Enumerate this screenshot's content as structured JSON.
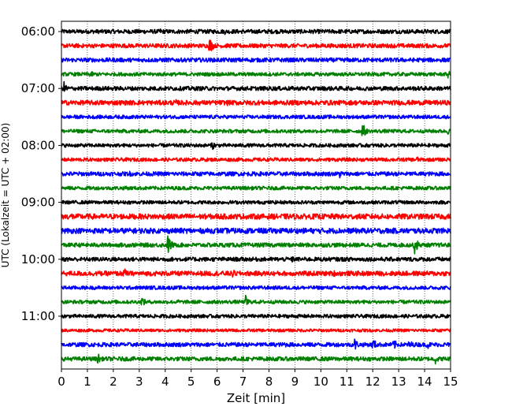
{
  "chart_data": {
    "type": "line",
    "title": "",
    "xlabel": "Zeit  [min]",
    "ylabel": "UTC (Lokalzeit = UTC + 02:00)",
    "xlim": [
      0,
      15
    ],
    "x_ticks": [
      "0",
      "1",
      "2",
      "3",
      "4",
      "5",
      "6",
      "7",
      "8",
      "9",
      "10",
      "11",
      "12",
      "13",
      "14",
      "15"
    ],
    "y_ticks": [
      "06:00",
      "07:00",
      "08:00",
      "09:00",
      "10:00",
      "11:00"
    ],
    "grid": "vertical dotted at each minute",
    "trace_interval_min": 15,
    "start_time": "06:00",
    "color_cycle": [
      "#000000",
      "#ff0000",
      "#0000ff",
      "#008000"
    ],
    "series": [
      {
        "row": 0,
        "time": "06:00",
        "color": "#000000",
        "amplitude": 0.35,
        "events": [
          {
            "t": 3.8,
            "amp": 0.6
          },
          {
            "t": 6.3,
            "amp": 0.5
          },
          {
            "t": 8.7,
            "amp": 0.5
          }
        ]
      },
      {
        "row": 1,
        "time": "06:15",
        "color": "#ff0000",
        "amplitude": 0.35,
        "events": [
          {
            "t": 5.7,
            "amp": 1.6
          },
          {
            "t": 10.8,
            "amp": 0.5
          }
        ]
      },
      {
        "row": 2,
        "time": "06:30",
        "color": "#0000ff",
        "amplitude": 0.35,
        "events": [
          {
            "t": 9.5,
            "amp": 0.5
          }
        ]
      },
      {
        "row": 3,
        "time": "06:45",
        "color": "#008000",
        "amplitude": 0.3,
        "events": [
          {
            "t": 1.1,
            "amp": 0.8
          },
          {
            "t": 14.9,
            "amp": 0.7
          }
        ]
      },
      {
        "row": 4,
        "time": "07:00",
        "color": "#000000",
        "amplitude": 0.35,
        "events": [
          {
            "t": 0.1,
            "amp": 1.2
          }
        ]
      },
      {
        "row": 5,
        "time": "07:15",
        "color": "#ff0000",
        "amplitude": 0.4,
        "events": [
          {
            "t": 4.4,
            "amp": 0.6
          },
          {
            "t": 6.4,
            "amp": 0.5
          }
        ]
      },
      {
        "row": 6,
        "time": "07:30",
        "color": "#0000ff",
        "amplitude": 0.3,
        "events": [
          {
            "t": 8.9,
            "amp": 0.4
          }
        ]
      },
      {
        "row": 7,
        "time": "07:45",
        "color": "#008000",
        "amplitude": 0.3,
        "events": [
          {
            "t": 11.6,
            "amp": 1.5
          },
          {
            "t": 14.9,
            "amp": 0.6
          }
        ]
      },
      {
        "row": 8,
        "time": "08:00",
        "color": "#000000",
        "amplitude": 0.3,
        "events": [
          {
            "t": 5.8,
            "amp": 0.9
          },
          {
            "t": 13.9,
            "amp": 0.4
          }
        ]
      },
      {
        "row": 9,
        "time": "08:15",
        "color": "#ff0000",
        "amplitude": 0.3,
        "events": [
          {
            "t": 13.7,
            "amp": 0.6
          }
        ]
      },
      {
        "row": 10,
        "time": "08:30",
        "color": "#0000ff",
        "amplitude": 0.35,
        "events": [
          {
            "t": 10.7,
            "amp": 1.0
          },
          {
            "t": 2.6,
            "amp": 0.6
          }
        ]
      },
      {
        "row": 11,
        "time": "08:45",
        "color": "#008000",
        "amplitude": 0.3,
        "events": [
          {
            "t": 2.5,
            "amp": 0.5
          },
          {
            "t": 11.8,
            "amp": 0.5
          }
        ]
      },
      {
        "row": 12,
        "time": "09:00",
        "color": "#000000",
        "amplitude": 0.3,
        "events": [
          {
            "t": 9.8,
            "amp": 0.4
          }
        ]
      },
      {
        "row": 13,
        "time": "09:15",
        "color": "#ff0000",
        "amplitude": 0.45,
        "events": [
          {
            "t": 0.4,
            "amp": 0.7
          },
          {
            "t": 4.9,
            "amp": 0.6
          }
        ]
      },
      {
        "row": 14,
        "time": "09:30",
        "color": "#0000ff",
        "amplitude": 0.45,
        "events": [
          {
            "t": 0.3,
            "amp": 0.6
          },
          {
            "t": 14.8,
            "amp": 0.7
          }
        ]
      },
      {
        "row": 15,
        "time": "09:45",
        "color": "#008000",
        "amplitude": 0.35,
        "events": [
          {
            "t": 4.1,
            "amp": 1.9
          },
          {
            "t": 13.6,
            "amp": 1.8
          },
          {
            "t": 2.4,
            "amp": 0.5
          }
        ]
      },
      {
        "row": 16,
        "time": "10:00",
        "color": "#000000",
        "amplitude": 0.35,
        "events": [
          {
            "t": 8.9,
            "amp": 0.6
          },
          {
            "t": 1.5,
            "amp": 0.4
          }
        ]
      },
      {
        "row": 17,
        "time": "10:15",
        "color": "#ff0000",
        "amplitude": 0.4,
        "events": [
          {
            "t": 2.4,
            "amp": 1.1
          },
          {
            "t": 6.6,
            "amp": 0.8
          },
          {
            "t": 10.5,
            "amp": 0.6
          }
        ]
      },
      {
        "row": 18,
        "time": "10:30",
        "color": "#0000ff",
        "amplitude": 0.3,
        "events": [
          {
            "t": 8.7,
            "amp": 0.4
          }
        ]
      },
      {
        "row": 19,
        "time": "10:45",
        "color": "#008000",
        "amplitude": 0.3,
        "events": [
          {
            "t": 3.1,
            "amp": 1.0
          },
          {
            "t": 7.1,
            "amp": 1.2
          },
          {
            "t": 4.5,
            "amp": 0.5
          }
        ]
      },
      {
        "row": 20,
        "time": "11:00",
        "color": "#000000",
        "amplitude": 0.3,
        "events": [
          {
            "t": 8.3,
            "amp": 0.5
          }
        ]
      },
      {
        "row": 21,
        "time": "11:15",
        "color": "#ff0000",
        "amplitude": 0.25,
        "events": []
      },
      {
        "row": 22,
        "time": "11:30",
        "color": "#0000ff",
        "amplitude": 0.35,
        "events": [
          {
            "t": 11.3,
            "amp": 1.2
          },
          {
            "t": 12.0,
            "amp": 1.3
          },
          {
            "t": 12.8,
            "amp": 1.1
          },
          {
            "t": 13.4,
            "amp": 1.0
          },
          {
            "t": 14.1,
            "amp": 0.9
          },
          {
            "t": 8.6,
            "amp": 0.6
          }
        ]
      },
      {
        "row": 23,
        "time": "11:45",
        "color": "#008000",
        "amplitude": 0.35,
        "events": [
          {
            "t": 1.4,
            "amp": 1.1
          },
          {
            "t": 14.4,
            "amp": 1.0
          },
          {
            "t": 4.7,
            "amp": 0.5
          }
        ]
      }
    ]
  }
}
